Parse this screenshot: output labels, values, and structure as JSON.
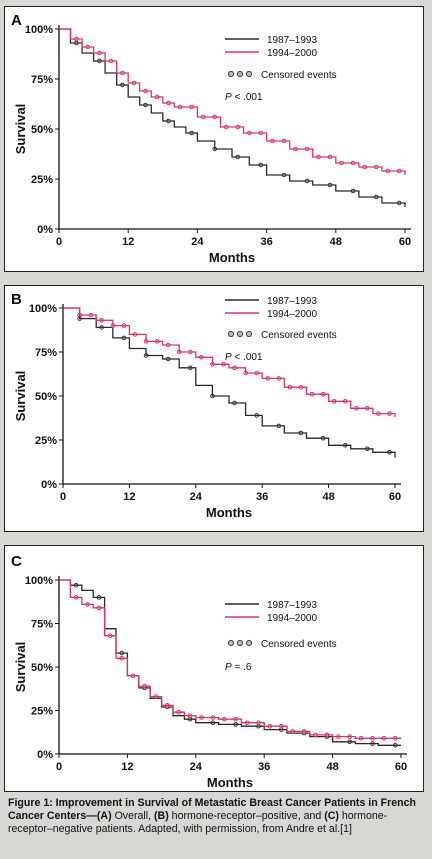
{
  "colors": {
    "series_1987": "#2a2a2a",
    "series_1994": "#e0306a",
    "censor_dot": "#333333",
    "page_bg": "#d7d7d3"
  },
  "caption": {
    "title": "Figure 1: Improvement in Survival of Metastatic Breast Cancer Patients in French Cancer Centers—",
    "part_a_label": "(A)",
    "part_a_text": " Overall, ",
    "part_b_label": "(B)",
    "part_b_text": " hormone-receptor–positive, and ",
    "part_c_label": "(C)",
    "part_c_text": " hormone-receptor–negative patients. Adapted, with permission, from Andre et al.[1]"
  },
  "chart_data": [
    {
      "panel_label": "A",
      "type": "line",
      "title": "",
      "xlabel": "Months",
      "ylabel": "Survival",
      "xlim": [
        0,
        60
      ],
      "ylim": [
        0,
        100
      ],
      "x_ticks": [
        "0",
        "12",
        "24",
        "36",
        "48",
        "60"
      ],
      "y_ticks": [
        "0%",
        "25%",
        "50%",
        "75%",
        "100%"
      ],
      "legend": [
        "1987–1993",
        "1994–2000"
      ],
      "censored_label": "Censored events",
      "p_label": "P",
      "p_value": " < .001",
      "series": [
        {
          "name": "1987–1993",
          "x": [
            0,
            2,
            4,
            6,
            8,
            10,
            12,
            14,
            16,
            18,
            20,
            22,
            24,
            27,
            30,
            33,
            36,
            40,
            44,
            48,
            52,
            56,
            60
          ],
          "y": [
            100,
            93,
            88,
            84,
            78,
            72,
            66,
            62,
            58,
            54,
            51,
            48,
            44,
            40,
            36,
            32,
            27,
            24,
            22,
            19,
            16,
            13,
            11
          ]
        },
        {
          "name": "1994–2000",
          "x": [
            0,
            2,
            4,
            6,
            8,
            10,
            12,
            14,
            16,
            18,
            20,
            24,
            28,
            32,
            36,
            40,
            44,
            48,
            52,
            56,
            60
          ],
          "y": [
            100,
            95,
            91,
            88,
            84,
            78,
            73,
            69,
            66,
            63,
            61,
            56,
            51,
            48,
            44,
            40,
            36,
            33,
            31,
            29,
            27
          ]
        }
      ]
    },
    {
      "panel_label": "B",
      "type": "line",
      "title": "",
      "xlabel": "Months",
      "ylabel": "Survival",
      "xlim": [
        0,
        60
      ],
      "ylim": [
        0,
        100
      ],
      "x_ticks": [
        "0",
        "12",
        "24",
        "36",
        "48",
        "60"
      ],
      "y_ticks": [
        "0%",
        "25%",
        "50%",
        "75%",
        "100%"
      ],
      "legend": [
        "1987–1993",
        "1994–2000"
      ],
      "censored_label": "Censored events",
      "p_label": "P",
      "p_value": " < .001",
      "series": [
        {
          "name": "1987–1993",
          "x": [
            0,
            3,
            6,
            9,
            12,
            15,
            18,
            21,
            24,
            27,
            30,
            33,
            36,
            40,
            44,
            48,
            52,
            56,
            60
          ],
          "y": [
            100,
            94,
            89,
            83,
            77,
            73,
            71,
            66,
            56,
            50,
            46,
            39,
            33,
            29,
            26,
            22,
            20,
            18,
            15
          ]
        },
        {
          "name": "1994–2000",
          "x": [
            0,
            3,
            6,
            9,
            12,
            15,
            18,
            21,
            24,
            27,
            30,
            33,
            36,
            40,
            44,
            48,
            52,
            56,
            60
          ],
          "y": [
            100,
            96,
            93,
            90,
            85,
            81,
            79,
            75,
            72,
            68,
            66,
            63,
            60,
            55,
            51,
            47,
            43,
            40,
            38
          ]
        }
      ]
    },
    {
      "panel_label": "C",
      "type": "line",
      "title": "",
      "xlabel": "Months",
      "ylabel": "Survival",
      "xlim": [
        0,
        60
      ],
      "ylim": [
        0,
        100
      ],
      "x_ticks": [
        "0",
        "12",
        "24",
        "36",
        "48",
        "60"
      ],
      "y_ticks": [
        "0%",
        "25%",
        "50%",
        "75%",
        "100%"
      ],
      "legend": [
        "1987–1993",
        "1994–2000"
      ],
      "censored_label": "Censored events",
      "p_label": "P",
      "p_value": " = .6",
      "series": [
        {
          "name": "1987–1993",
          "x": [
            0,
            2,
            4,
            6,
            8,
            10,
            12,
            14,
            16,
            18,
            20,
            22,
            24,
            28,
            32,
            36,
            40,
            44,
            48,
            52,
            56,
            60
          ],
          "y": [
            100,
            97,
            94,
            90,
            72,
            58,
            45,
            38,
            32,
            27,
            22,
            20,
            18,
            17,
            16,
            14,
            12,
            10,
            7,
            6,
            5,
            5
          ]
        },
        {
          "name": "1994–2000",
          "x": [
            0,
            2,
            4,
            6,
            8,
            10,
            12,
            14,
            16,
            18,
            20,
            22,
            24,
            28,
            32,
            36,
            40,
            44,
            48,
            52,
            56,
            60
          ],
          "y": [
            100,
            90,
            86,
            84,
            68,
            55,
            45,
            39,
            33,
            28,
            24,
            22,
            21,
            20,
            18,
            16,
            13,
            11,
            10,
            9,
            9,
            9
          ]
        }
      ]
    }
  ]
}
